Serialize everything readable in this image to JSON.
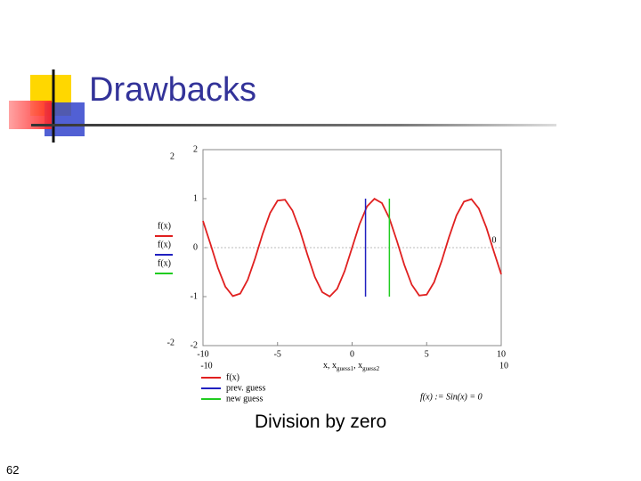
{
  "title": "Drawbacks",
  "caption": "Division by zero",
  "page_number": "62",
  "chart_data": {
    "type": "line",
    "x_label": [
      "x, x",
      "guess1",
      ", x",
      "guess2"
    ],
    "equation": "f(x) := Sin(x) = 0",
    "left_legend_labels": [
      "f(x)",
      "f(x)",
      "f(x)"
    ],
    "xlim": [
      -10,
      10
    ],
    "ylim": [
      -2,
      2
    ],
    "xticks": [
      -10,
      -5,
      0,
      5,
      10
    ],
    "yticks": [
      -2,
      -1,
      0,
      1,
      2
    ],
    "series": [
      {
        "name": "f(x)",
        "color": "#e02020",
        "x": [
          -10,
          -9.5,
          -9,
          -8.5,
          -8,
          -7.5,
          -7,
          -6.5,
          -6,
          -5.5,
          -5,
          -4.5,
          -4,
          -3.5,
          -3,
          -2.5,
          -2,
          -1.5,
          -1,
          -0.5,
          0,
          0.5,
          1,
          1.5,
          2,
          2.5,
          3,
          3.5,
          4,
          4.5,
          5,
          5.5,
          6,
          6.5,
          7,
          7.5,
          8,
          8.5,
          9,
          9.5,
          10
        ],
        "values": [
          0.544,
          0.075,
          -0.412,
          -0.798,
          -0.989,
          -0.938,
          -0.657,
          -0.215,
          0.279,
          0.706,
          0.959,
          0.978,
          0.757,
          0.351,
          -0.141,
          -0.598,
          -0.909,
          -0.997,
          -0.841,
          -0.479,
          0,
          0.479,
          0.841,
          0.997,
          0.909,
          0.598,
          0.141,
          -0.351,
          -0.757,
          -0.978,
          -0.959,
          -0.706,
          -0.279,
          0.215,
          0.657,
          0.938,
          0.989,
          0.798,
          0.412,
          -0.075,
          -0.544
        ]
      },
      {
        "name": "prev. guess",
        "color": "#2020c0",
        "x": [
          0.9,
          0.9
        ],
        "values": [
          -1,
          1
        ]
      },
      {
        "name": "new guess",
        "color": "#20cc20",
        "x": [
          2.5,
          2.5
        ],
        "values": [
          -1,
          1
        ]
      }
    ]
  }
}
